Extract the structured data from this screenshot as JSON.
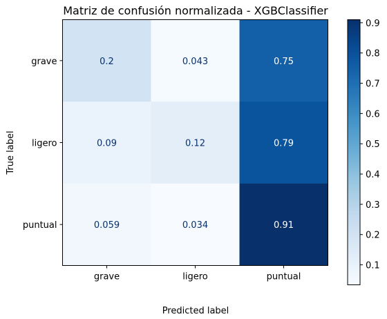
{
  "chart_data": {
    "type": "heatmap",
    "title": "Matriz de confusión normalizada - XGBClassifier",
    "xlabel": "Predicted label",
    "ylabel": "True label",
    "x_categories": [
      "grave",
      "ligero",
      "puntual"
    ],
    "y_categories": [
      "grave",
      "ligero",
      "puntual"
    ],
    "values": [
      [
        0.2,
        0.043,
        0.75
      ],
      [
        0.09,
        0.12,
        0.79
      ],
      [
        0.059,
        0.034,
        0.91
      ]
    ],
    "colormap": "Blues",
    "colorbar": {
      "range": [
        0.034,
        0.91
      ],
      "ticks": [
        0.1,
        0.2,
        0.3,
        0.4,
        0.5,
        0.6,
        0.7,
        0.8,
        0.9
      ],
      "tick_labels": [
        "0.1",
        "0.2",
        "0.3",
        "0.4",
        "0.5",
        "0.6",
        "0.7",
        "0.8",
        "0.9"
      ]
    },
    "grid": false
  }
}
